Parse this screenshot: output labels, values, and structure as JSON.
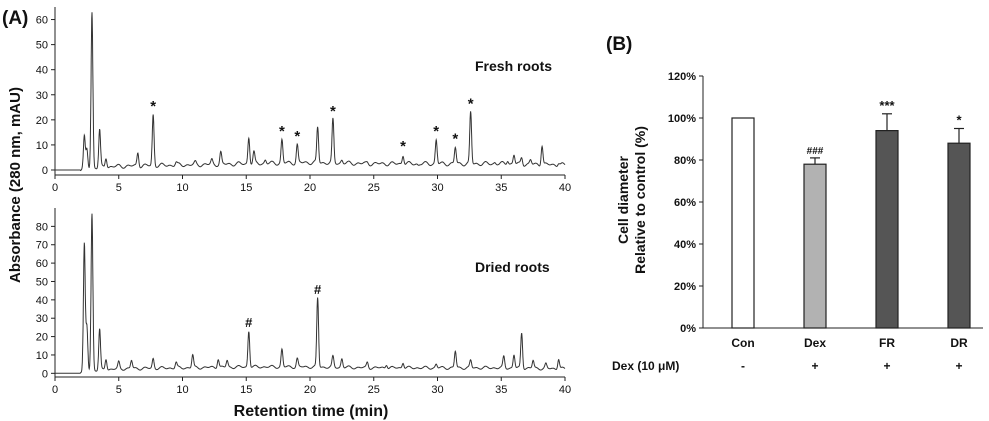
{
  "panel_a": {
    "label": "(A)",
    "ylabel": "Absorbance (280 nm, mAU)",
    "xlabel": "Retention time (min)"
  },
  "panel_b": {
    "label": "(B)"
  },
  "chart_data": [
    {
      "type": "line",
      "panel": "A-top",
      "annotation": "Fresh roots",
      "xlim": [
        0,
        40
      ],
      "ylim": [
        -2,
        65
      ],
      "xticks": [
        0,
        5,
        10,
        15,
        20,
        25,
        30,
        35,
        40
      ],
      "yticks": [
        0,
        10,
        20,
        30,
        40,
        50,
        60
      ],
      "baseline": [
        [
          2.0,
          0.5
        ],
        [
          5,
          1.5
        ],
        [
          10,
          2
        ],
        [
          15,
          2.5
        ],
        [
          20,
          3
        ],
        [
          25,
          2.5
        ],
        [
          30,
          2.5
        ],
        [
          35,
          2.5
        ],
        [
          40,
          2
        ]
      ],
      "peaks": [
        {
          "x": 2.3,
          "y": 13
        },
        {
          "x": 2.5,
          "y": 8
        },
        {
          "x": 2.9,
          "y": 63
        },
        {
          "x": 3.5,
          "y": 16
        },
        {
          "x": 4.0,
          "y": 5
        },
        {
          "x": 6.5,
          "y": 7
        },
        {
          "x": 7.7,
          "y": 22
        },
        {
          "x": 9.5,
          "y": 3
        },
        {
          "x": 11.0,
          "y": 3
        },
        {
          "x": 12.3,
          "y": 4
        },
        {
          "x": 13.0,
          "y": 7
        },
        {
          "x": 15.2,
          "y": 13
        },
        {
          "x": 15.6,
          "y": 7
        },
        {
          "x": 16.5,
          "y": 4
        },
        {
          "x": 17.8,
          "y": 12
        },
        {
          "x": 19.0,
          "y": 10
        },
        {
          "x": 20.6,
          "y": 17
        },
        {
          "x": 21.8,
          "y": 20
        },
        {
          "x": 22.5,
          "y": 4
        },
        {
          "x": 24.5,
          "y": 3
        },
        {
          "x": 27.3,
          "y": 6
        },
        {
          "x": 28.5,
          "y": 2
        },
        {
          "x": 29.9,
          "y": 12
        },
        {
          "x": 31.4,
          "y": 9
        },
        {
          "x": 32.6,
          "y": 23
        },
        {
          "x": 34.5,
          "y": 3
        },
        {
          "x": 35.5,
          "y": 4
        },
        {
          "x": 36.0,
          "y": 6
        },
        {
          "x": 36.6,
          "y": 5
        },
        {
          "x": 37.3,
          "y": 4
        },
        {
          "x": 38.2,
          "y": 10
        },
        {
          "x": 39.5,
          "y": 3
        }
      ],
      "markers": [
        {
          "x": 7.7,
          "y": 22,
          "symbol": "*"
        },
        {
          "x": 17.8,
          "y": 12,
          "symbol": "*"
        },
        {
          "x": 19.0,
          "y": 10,
          "symbol": "*"
        },
        {
          "x": 21.8,
          "y": 20,
          "symbol": "*"
        },
        {
          "x": 27.3,
          "y": 6,
          "symbol": "*"
        },
        {
          "x": 29.9,
          "y": 12,
          "symbol": "*"
        },
        {
          "x": 31.4,
          "y": 9,
          "symbol": "*"
        },
        {
          "x": 32.6,
          "y": 23,
          "symbol": "*"
        }
      ]
    },
    {
      "type": "line",
      "panel": "A-bottom",
      "annotation": "Dried roots",
      "xlim": [
        0,
        40
      ],
      "ylim": [
        -2,
        90
      ],
      "xticks": [
        0,
        5,
        10,
        15,
        20,
        25,
        30,
        35,
        40
      ],
      "yticks": [
        0,
        10,
        20,
        30,
        40,
        50,
        60,
        70,
        80
      ],
      "baseline": [
        [
          2.0,
          1
        ],
        [
          5,
          2.5
        ],
        [
          10,
          3
        ],
        [
          15,
          3.5
        ],
        [
          20,
          3.5
        ],
        [
          25,
          3
        ],
        [
          30,
          3
        ],
        [
          35,
          3
        ],
        [
          40,
          2.5
        ]
      ],
      "peaks": [
        {
          "x": 2.3,
          "y": 70
        },
        {
          "x": 2.5,
          "y": 25
        },
        {
          "x": 2.9,
          "y": 87
        },
        {
          "x": 3.5,
          "y": 24
        },
        {
          "x": 4.0,
          "y": 8
        },
        {
          "x": 5.0,
          "y": 6
        },
        {
          "x": 6.0,
          "y": 7
        },
        {
          "x": 7.7,
          "y": 8
        },
        {
          "x": 9.5,
          "y": 6
        },
        {
          "x": 10.8,
          "y": 10
        },
        {
          "x": 12.8,
          "y": 8
        },
        {
          "x": 13.5,
          "y": 7
        },
        {
          "x": 15.2,
          "y": 23
        },
        {
          "x": 17.8,
          "y": 13
        },
        {
          "x": 19.0,
          "y": 8
        },
        {
          "x": 20.6,
          "y": 41
        },
        {
          "x": 21.8,
          "y": 9
        },
        {
          "x": 22.5,
          "y": 8
        },
        {
          "x": 24.5,
          "y": 6
        },
        {
          "x": 26.0,
          "y": 5
        },
        {
          "x": 27.3,
          "y": 6
        },
        {
          "x": 29.9,
          "y": 5
        },
        {
          "x": 31.4,
          "y": 12
        },
        {
          "x": 32.6,
          "y": 7
        },
        {
          "x": 35.2,
          "y": 9
        },
        {
          "x": 36.0,
          "y": 10
        },
        {
          "x": 36.6,
          "y": 22
        },
        {
          "x": 37.5,
          "y": 7
        },
        {
          "x": 38.5,
          "y": 5
        },
        {
          "x": 39.5,
          "y": 8
        }
      ],
      "markers": [
        {
          "x": 15.2,
          "y": 23,
          "symbol": "#"
        },
        {
          "x": 20.6,
          "y": 41,
          "symbol": "#"
        }
      ]
    },
    {
      "type": "bar",
      "panel": "B",
      "ylabel_lines": [
        "Cell diameter",
        "Relative to control (%)"
      ],
      "categories": [
        "Con",
        "Dex",
        "FR",
        "DR"
      ],
      "values": [
        100,
        78,
        94,
        88
      ],
      "errors": [
        0,
        3,
        8,
        7
      ],
      "fills": [
        "#ffffff",
        "#b2b2b2",
        "#555555",
        "#555555"
      ],
      "significance": [
        "",
        "###",
        "***",
        "*"
      ],
      "ylim": [
        0,
        120
      ],
      "yticks": [
        "0%",
        "20%",
        "40%",
        "60%",
        "80%",
        "100%",
        "120%"
      ],
      "treatment_label": "Dex (10 μM)",
      "treatment": [
        "-",
        "+",
        "+",
        "+"
      ]
    }
  ]
}
